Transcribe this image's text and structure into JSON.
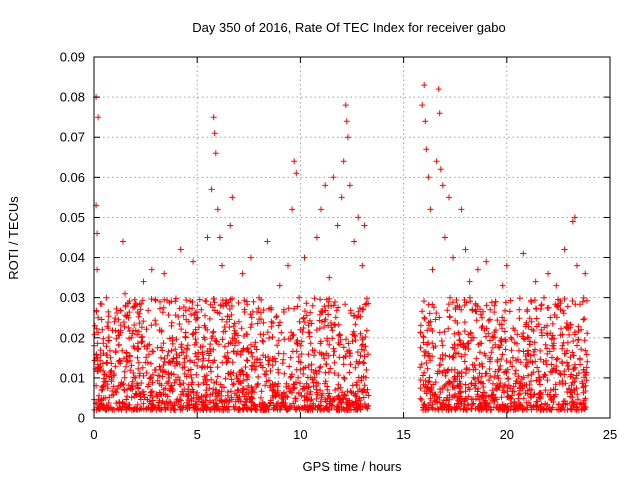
{
  "chart_data": {
    "type": "scatter",
    "title": "Day 350 of 2016, Rate Of TEC Index for receiver gabo",
    "xlabel": "GPS time / hours",
    "ylabel": "ROTI / TECUs",
    "xlim": [
      0,
      25
    ],
    "ylim": [
      0,
      0.09
    ],
    "x_ticks": [
      0,
      5,
      10,
      15,
      20,
      25
    ],
    "y_ticks": [
      0,
      0.01,
      0.02,
      0.03,
      0.04,
      0.05,
      0.06,
      0.07,
      0.08,
      0.09
    ],
    "x_tick_labels": [
      "0",
      "5",
      "10",
      "15",
      "20",
      "25"
    ],
    "y_tick_labels": [
      "0",
      "0.01",
      "0.02",
      "0.03",
      "0.04",
      "0.05",
      "0.06",
      "0.07",
      "0.08",
      "0.09"
    ],
    "grid": true,
    "legend": false,
    "marker": "+",
    "color": "#ff0000",
    "series": [
      {
        "points": [
          [
            0.0,
            0.018
          ],
          [
            0.1,
            0.08
          ],
          [
            0.1,
            0.053
          ],
          [
            0.15,
            0.046
          ],
          [
            0.15,
            0.037
          ],
          [
            0.2,
            0.075
          ],
          [
            0.2,
            0.025
          ],
          [
            0.3,
            0.012
          ],
          [
            0.4,
            0.022
          ],
          [
            0.5,
            0.009
          ],
          [
            0.6,
            0.03
          ],
          [
            0.8,
            0.015
          ],
          [
            1.0,
            0.024
          ],
          [
            1.2,
            0.008
          ],
          [
            1.4,
            0.044
          ],
          [
            1.5,
            0.031
          ],
          [
            1.6,
            0.014
          ],
          [
            1.8,
            0.02
          ],
          [
            2.0,
            0.01
          ],
          [
            2.2,
            0.026
          ],
          [
            2.4,
            0.034
          ],
          [
            2.6,
            0.018
          ],
          [
            2.8,
            0.037
          ],
          [
            3.0,
            0.012
          ],
          [
            3.2,
            0.029
          ],
          [
            3.4,
            0.036
          ],
          [
            3.6,
            0.009
          ],
          [
            3.8,
            0.02
          ],
          [
            4.0,
            0.014
          ],
          [
            4.2,
            0.042
          ],
          [
            4.4,
            0.011
          ],
          [
            4.6,
            0.024
          ],
          [
            4.8,
            0.039
          ],
          [
            5.0,
            0.013
          ],
          [
            5.2,
            0.027
          ],
          [
            5.5,
            0.045
          ],
          [
            5.7,
            0.057
          ],
          [
            5.8,
            0.075
          ],
          [
            5.85,
            0.071
          ],
          [
            5.9,
            0.066
          ],
          [
            6.0,
            0.052
          ],
          [
            6.1,
            0.045
          ],
          [
            6.2,
            0.038
          ],
          [
            6.4,
            0.015
          ],
          [
            6.6,
            0.048
          ],
          [
            6.7,
            0.055
          ],
          [
            6.8,
            0.021
          ],
          [
            7.0,
            0.009
          ],
          [
            7.2,
            0.036
          ],
          [
            7.4,
            0.017
          ],
          [
            7.6,
            0.04
          ],
          [
            7.8,
            0.012
          ],
          [
            8.0,
            0.03
          ],
          [
            8.2,
            0.019
          ],
          [
            8.4,
            0.044
          ],
          [
            8.6,
            0.024
          ],
          [
            8.8,
            0.014
          ],
          [
            9.0,
            0.033
          ],
          [
            9.2,
            0.027
          ],
          [
            9.4,
            0.038
          ],
          [
            9.6,
            0.052
          ],
          [
            9.7,
            0.064
          ],
          [
            9.8,
            0.061
          ],
          [
            10.0,
            0.022
          ],
          [
            10.2,
            0.04
          ],
          [
            10.4,
            0.013
          ],
          [
            10.6,
            0.028
          ],
          [
            10.8,
            0.045
          ],
          [
            11.0,
            0.052
          ],
          [
            11.2,
            0.058
          ],
          [
            11.4,
            0.035
          ],
          [
            11.6,
            0.06
          ],
          [
            11.8,
            0.048
          ],
          [
            12.0,
            0.055
          ],
          [
            12.1,
            0.064
          ],
          [
            12.2,
            0.078
          ],
          [
            12.25,
            0.074
          ],
          [
            12.3,
            0.07
          ],
          [
            12.4,
            0.058
          ],
          [
            12.6,
            0.044
          ],
          [
            12.8,
            0.05
          ],
          [
            13.0,
            0.038
          ],
          [
            13.1,
            0.048
          ],
          [
            13.2,
            0.012
          ],
          [
            15.9,
            0.078
          ],
          [
            16.0,
            0.083
          ],
          [
            16.05,
            0.074
          ],
          [
            16.1,
            0.067
          ],
          [
            16.2,
            0.06
          ],
          [
            16.3,
            0.052
          ],
          [
            16.4,
            0.037
          ],
          [
            16.6,
            0.064
          ],
          [
            16.7,
            0.082
          ],
          [
            16.75,
            0.076
          ],
          [
            16.8,
            0.062
          ],
          [
            16.9,
            0.058
          ],
          [
            17.0,
            0.045
          ],
          [
            17.2,
            0.055
          ],
          [
            17.4,
            0.04
          ],
          [
            17.6,
            0.028
          ],
          [
            17.8,
            0.052
          ],
          [
            18.0,
            0.042
          ],
          [
            18.2,
            0.034
          ],
          [
            18.4,
            0.02
          ],
          [
            18.6,
            0.037
          ],
          [
            18.8,
            0.025
          ],
          [
            19.0,
            0.039
          ],
          [
            19.2,
            0.015
          ],
          [
            19.4,
            0.028
          ],
          [
            19.6,
            0.012
          ],
          [
            19.8,
            0.033
          ],
          [
            20.0,
            0.038
          ],
          [
            20.2,
            0.02
          ],
          [
            20.4,
            0.011
          ],
          [
            20.6,
            0.027
          ],
          [
            20.8,
            0.041
          ],
          [
            21.0,
            0.016
          ],
          [
            21.2,
            0.024
          ],
          [
            21.4,
            0.034
          ],
          [
            21.6,
            0.01
          ],
          [
            21.8,
            0.03
          ],
          [
            22.0,
            0.036
          ],
          [
            22.2,
            0.018
          ],
          [
            22.4,
            0.033
          ],
          [
            22.6,
            0.027
          ],
          [
            22.8,
            0.042
          ],
          [
            23.0,
            0.013
          ],
          [
            23.2,
            0.049
          ],
          [
            23.3,
            0.05
          ],
          [
            23.4,
            0.038
          ],
          [
            23.6,
            0.022
          ],
          [
            23.8,
            0.036
          ],
          [
            23.9,
            0.014
          ]
        ]
      }
    ],
    "dense_band": {
      "segments": [
        {
          "x_range": [
            0.0,
            13.3
          ],
          "typical_range": [
            0.002,
            0.03
          ]
        },
        {
          "x_range": [
            15.8,
            23.9
          ],
          "typical_range": [
            0.002,
            0.03
          ]
        }
      ]
    }
  }
}
